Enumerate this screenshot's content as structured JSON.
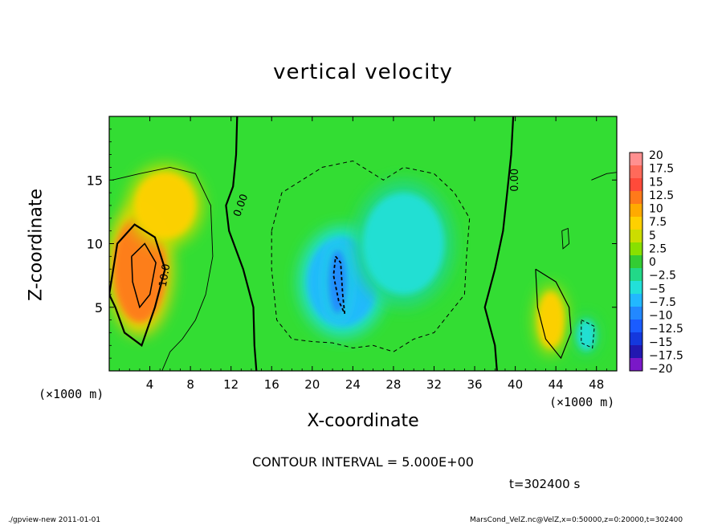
{
  "colors": {
    "cyan_region": "#22e6e6",
    "green_background": "#33dd33",
    "orange_region": "#ff9922",
    "blue_core": "#3380ff",
    "frame": "#000000"
  },
  "chart_data": {
    "type": "heatmap",
    "title": "vertical velocity",
    "xlabel": "X-coordinate",
    "ylabel": "Z-coordinate",
    "x_unit_label": "(×1000 m)",
    "y_unit_label": "(×1000 m)",
    "xlim": [
      0,
      50
    ],
    "ylim": [
      0,
      20
    ],
    "x_ticks": [
      4,
      8,
      12,
      16,
      20,
      24,
      28,
      32,
      36,
      40,
      44,
      48
    ],
    "y_ticks": [
      5,
      10,
      15
    ],
    "colorbar": {
      "levels": [
        "20",
        "17.5",
        "15",
        "12.5",
        "10",
        "7.5",
        "5",
        "2.5",
        "0",
        "−2.5",
        "−5",
        "−7.5",
        "−10",
        "−12.5",
        "−15",
        "−17.5",
        "−20"
      ],
      "colors": [
        "#ff9090",
        "#ff6a5a",
        "#ff4a3a",
        "#ff7a1a",
        "#ffaa00",
        "#ffd000",
        "#ccdd00",
        "#88e000",
        "#33cc33",
        "#22d888",
        "#22e0d8",
        "#22b8ff",
        "#2288ff",
        "#1a5cff",
        "#1438dd",
        "#2218b0",
        "#7a18c8"
      ]
    },
    "blobs": [
      {
        "name": "updraft-west",
        "x": 3.0,
        "z": 8.0,
        "rx": 2.6,
        "rz": 4.2,
        "value": 12.5
      },
      {
        "name": "updraft-west-upper",
        "x": 5.5,
        "z": 13.0,
        "rx": 3.0,
        "rz": 2.6,
        "value": 7.5
      },
      {
        "name": "downdraft-center",
        "x": 23.0,
        "z": 7.0,
        "rx": 3.5,
        "rz": 3.5,
        "value": -7.5
      },
      {
        "name": "downdraft-center-east",
        "x": 29.0,
        "z": 10.0,
        "rx": 4.0,
        "rz": 4.0,
        "value": -5.0
      },
      {
        "name": "downdraft-core",
        "x": 22.5,
        "z": 7.0,
        "rx": 0.9,
        "rz": 2.5,
        "value": -10.0
      },
      {
        "name": "updraft-east",
        "x": 43.5,
        "z": 4.0,
        "rx": 1.3,
        "rz": 2.2,
        "value": 7.5
      },
      {
        "name": "downdraft-east",
        "x": 47.0,
        "z": 2.8,
        "rx": 0.9,
        "rz": 1.2,
        "value": -5.0
      }
    ],
    "contour_labels": [
      {
        "text": "0.00",
        "x": 13.0,
        "z": 13.0,
        "angle": -70
      },
      {
        "text": "0.00",
        "x": 40.0,
        "z": 15.0,
        "angle": -90
      },
      {
        "text": "10.0",
        "x": 5.5,
        "z": 7.5,
        "angle": -80
      }
    ],
    "contour_interval": "CONTOUR INTERVAL = 5.000E+00",
    "time": "t=302400 s"
  },
  "footer": {
    "left": "./gpview-new   2011-01-01",
    "right": "MarsCond_VelZ.nc@VelZ,x=0:50000,z=0:20000,t=302400"
  }
}
